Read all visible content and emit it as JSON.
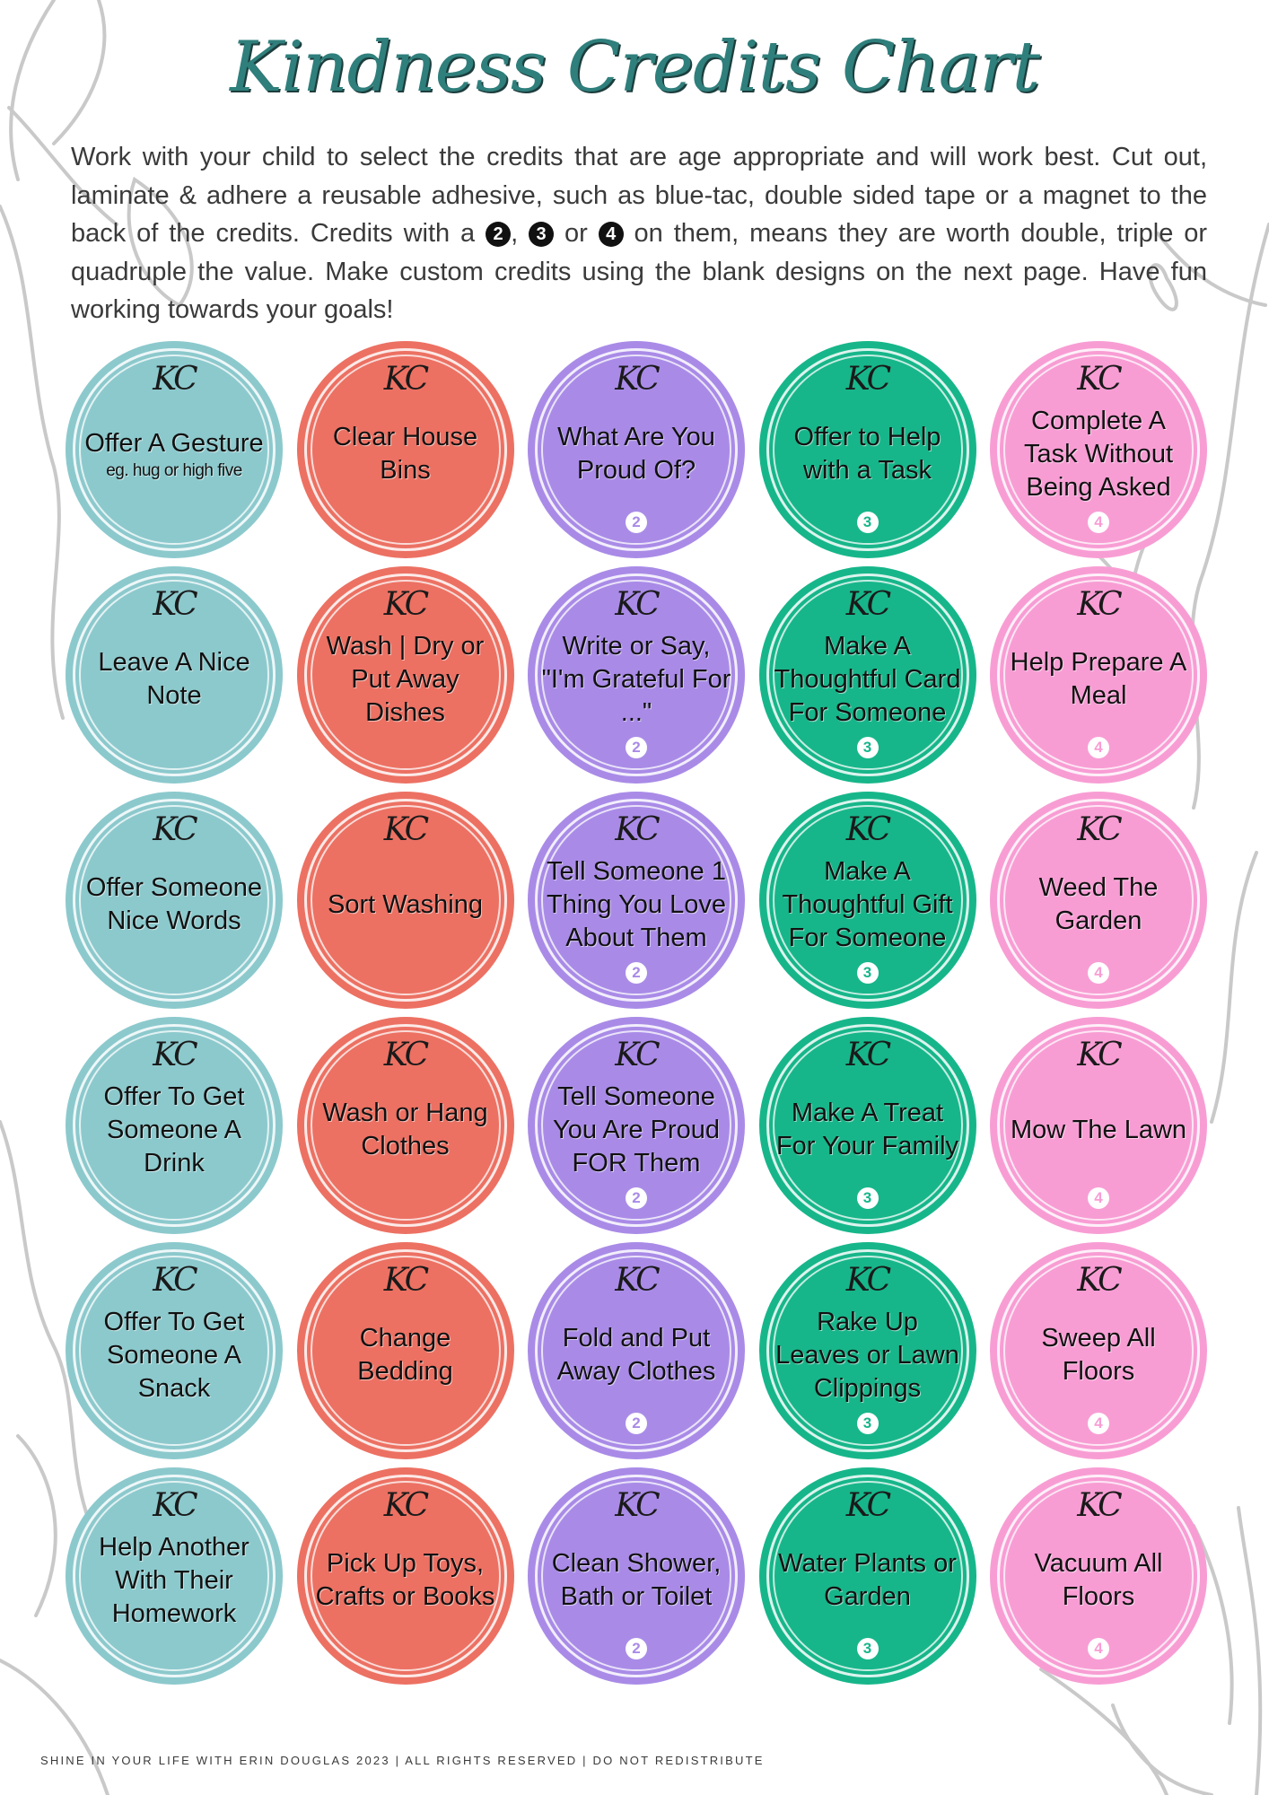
{
  "title": "Kindness Credits Chart",
  "intro": {
    "part1": "Work with your child to select the credits that are age appropriate and will work best. Cut out, laminate & adhere a reusable adhesive, such as blue-tac, double sided tape or a magnet to the back of the credits. Credits with a ",
    "num2": "2",
    "comma": ", ",
    "num3": "3",
    "or": " or ",
    "num4": "4",
    "part2": " on them, means they are worth double, triple or quadruple the value. Make custom credits using the blank designs on the next page. Have fun working towards your goals!"
  },
  "badge_monogram": "KC",
  "colors": {
    "teal": "#8cc9cd",
    "coral": "#ec7163",
    "purple": "#a98be7",
    "green": "#17b68a",
    "pink": "#f89dd4",
    "title": "#2f7f7c"
  },
  "credits": [
    {
      "label": "Offer A Gesture",
      "sub": "eg. hug or high five",
      "multiplier": "",
      "color": "teal"
    },
    {
      "label": "Clear House Bins",
      "sub": "",
      "multiplier": "",
      "color": "coral"
    },
    {
      "label": "What Are You Proud Of?",
      "sub": "",
      "multiplier": "2",
      "color": "purple"
    },
    {
      "label": "Offer to Help with a Task",
      "sub": "",
      "multiplier": "3",
      "color": "green"
    },
    {
      "label": "Complete A Task Without Being Asked",
      "sub": "",
      "multiplier": "4",
      "color": "pink"
    },
    {
      "label": "Leave A Nice Note",
      "sub": "",
      "multiplier": "",
      "color": "teal"
    },
    {
      "label": "Wash | Dry or Put Away Dishes",
      "sub": "",
      "multiplier": "",
      "color": "coral"
    },
    {
      "label": "Write or Say, \"I'm Grateful For ...\"",
      "sub": "",
      "multiplier": "2",
      "color": "purple"
    },
    {
      "label": "Make A Thoughtful Card For Someone",
      "sub": "",
      "multiplier": "3",
      "color": "green"
    },
    {
      "label": "Help Prepare A Meal",
      "sub": "",
      "multiplier": "4",
      "color": "pink"
    },
    {
      "label": "Offer Someone Nice Words",
      "sub": "",
      "multiplier": "",
      "color": "teal"
    },
    {
      "label": "Sort Washing",
      "sub": "",
      "multiplier": "",
      "color": "coral"
    },
    {
      "label": "Tell Someone 1 Thing You Love About Them",
      "sub": "",
      "multiplier": "2",
      "color": "purple"
    },
    {
      "label": "Make A Thoughtful Gift For Someone",
      "sub": "",
      "multiplier": "3",
      "color": "green"
    },
    {
      "label": "Weed The Garden",
      "sub": "",
      "multiplier": "4",
      "color": "pink"
    },
    {
      "label": "Offer To Get Someone A Drink",
      "sub": "",
      "multiplier": "",
      "color": "teal"
    },
    {
      "label": "Wash or Hang Clothes",
      "sub": "",
      "multiplier": "",
      "color": "coral"
    },
    {
      "label": "Tell Someone You Are Proud FOR Them",
      "sub": "",
      "multiplier": "2",
      "color": "purple"
    },
    {
      "label": "Make A Treat For Your Family",
      "sub": "",
      "multiplier": "3",
      "color": "green"
    },
    {
      "label": "Mow The Lawn",
      "sub": "",
      "multiplier": "4",
      "color": "pink"
    },
    {
      "label": "Offer To Get Someone A Snack",
      "sub": "",
      "multiplier": "",
      "color": "teal"
    },
    {
      "label": "Change Bedding",
      "sub": "",
      "multiplier": "",
      "color": "coral"
    },
    {
      "label": "Fold and Put Away Clothes",
      "sub": "",
      "multiplier": "2",
      "color": "purple"
    },
    {
      "label": "Rake Up Leaves or Lawn Clippings",
      "sub": "",
      "multiplier": "3",
      "color": "green"
    },
    {
      "label": "Sweep All Floors",
      "sub": "",
      "multiplier": "4",
      "color": "pink"
    },
    {
      "label": "Help Another With Their Homework",
      "sub": "",
      "multiplier": "",
      "color": "teal"
    },
    {
      "label": "Pick Up Toys, Crafts or Books",
      "sub": "",
      "multiplier": "",
      "color": "coral"
    },
    {
      "label": "Clean Shower, Bath or Toilet",
      "sub": "",
      "multiplier": "2",
      "color": "purple"
    },
    {
      "label": "Water Plants or Garden",
      "sub": "",
      "multiplier": "3",
      "color": "green"
    },
    {
      "label": "Vacuum All Floors",
      "sub": "",
      "multiplier": "4",
      "color": "pink"
    }
  ],
  "footer": "SHINE IN YOUR LIFE WITH ERIN DOUGLAS 2023 | ALL RIGHTS RESERVED | DO NOT REDISTRIBUTE"
}
